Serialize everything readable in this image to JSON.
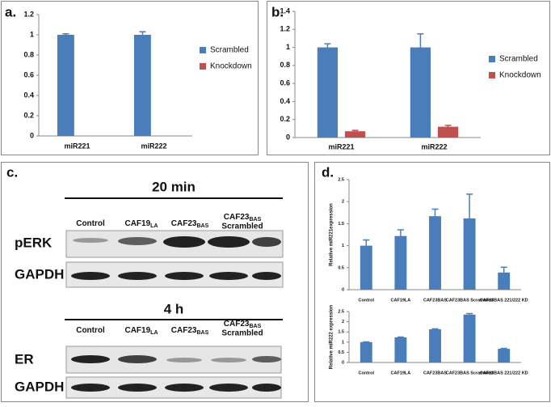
{
  "panel_labels": [
    "a.",
    "b.",
    "c.",
    "d."
  ],
  "chart_data": [
    {
      "type": "bar",
      "categories": [
        "miR221",
        "miR222"
      ],
      "series": [
        {
          "name": "Scrambled",
          "color": "#4a7ebb",
          "values": [
            1.0,
            1.0
          ],
          "errors": [
            0.01,
            0.03
          ]
        },
        {
          "name": "Knockdown",
          "color": "#c0504d",
          "values": [
            null,
            null
          ],
          "errors": [
            null,
            null
          ]
        }
      ],
      "ylim": [
        0,
        1.2
      ],
      "yticks": [
        0,
        0.2,
        0.4,
        0.6,
        0.8,
        1,
        1.2
      ],
      "legend": "right"
    },
    {
      "type": "bar",
      "categories": [
        "miR221",
        "miR222"
      ],
      "series": [
        {
          "name": "Scrambled",
          "color": "#4a7ebb",
          "values": [
            1.0,
            1.0
          ],
          "errors": [
            0.04,
            0.15
          ]
        },
        {
          "name": "Knockdown",
          "color": "#c0504d",
          "values": [
            0.07,
            0.12
          ],
          "errors": [
            0.01,
            0.015
          ]
        }
      ],
      "ylim": [
        0,
        1.4
      ],
      "yticks": [
        0,
        0.2,
        0.4,
        0.6,
        0.8,
        1,
        1.2,
        1.4
      ],
      "legend": "right"
    },
    {
      "type": "bar",
      "ylabel": "Relative miR221expression",
      "categories": [
        "Control",
        "CAF19LA",
        "CAF23BAS",
        "CAF23BAS Scrambled",
        "CAF23BAS 221/222 KD"
      ],
      "series": [
        {
          "name": "miR221",
          "color": "#4a7ebb",
          "values": [
            1.0,
            1.22,
            1.67,
            1.62,
            0.39
          ],
          "errors": [
            0.13,
            0.14,
            0.16,
            0.55,
            0.12
          ]
        }
      ],
      "ylim": [
        0,
        2.5
      ],
      "yticks": [
        0,
        0.5,
        1,
        1.5,
        2,
        2.5
      ]
    },
    {
      "type": "bar",
      "ylabel": "Relative miR222 expression",
      "categories": [
        "Control",
        "CAF19LA",
        "CAF23BAS",
        "CAF23BAS Scrambled",
        "CAF23BAS 221/222 KD"
      ],
      "series": [
        {
          "name": "miR222",
          "color": "#4a7ebb",
          "values": [
            1.0,
            1.23,
            1.63,
            2.35,
            0.67
          ],
          "errors": [
            0.01,
            0.02,
            0.02,
            0.05,
            0.02
          ]
        }
      ],
      "ylim": [
        0,
        2.5
      ],
      "yticks": [
        0,
        0.5,
        1,
        1.5,
        2,
        2.5
      ]
    }
  ],
  "blot": {
    "time1": "20 min",
    "time2": "4 h",
    "lanes": [
      {
        "name": "Control"
      },
      {
        "name": "CAF19",
        "sub": "LA"
      },
      {
        "name": "CAF23",
        "sub": "BAS"
      },
      {
        "name": "CAF23",
        "sub": "BAS",
        "extra": "Scrambled"
      }
    ],
    "rows": [
      "pERK",
      "GAPDH",
      "ER",
      "GAPDH"
    ]
  }
}
